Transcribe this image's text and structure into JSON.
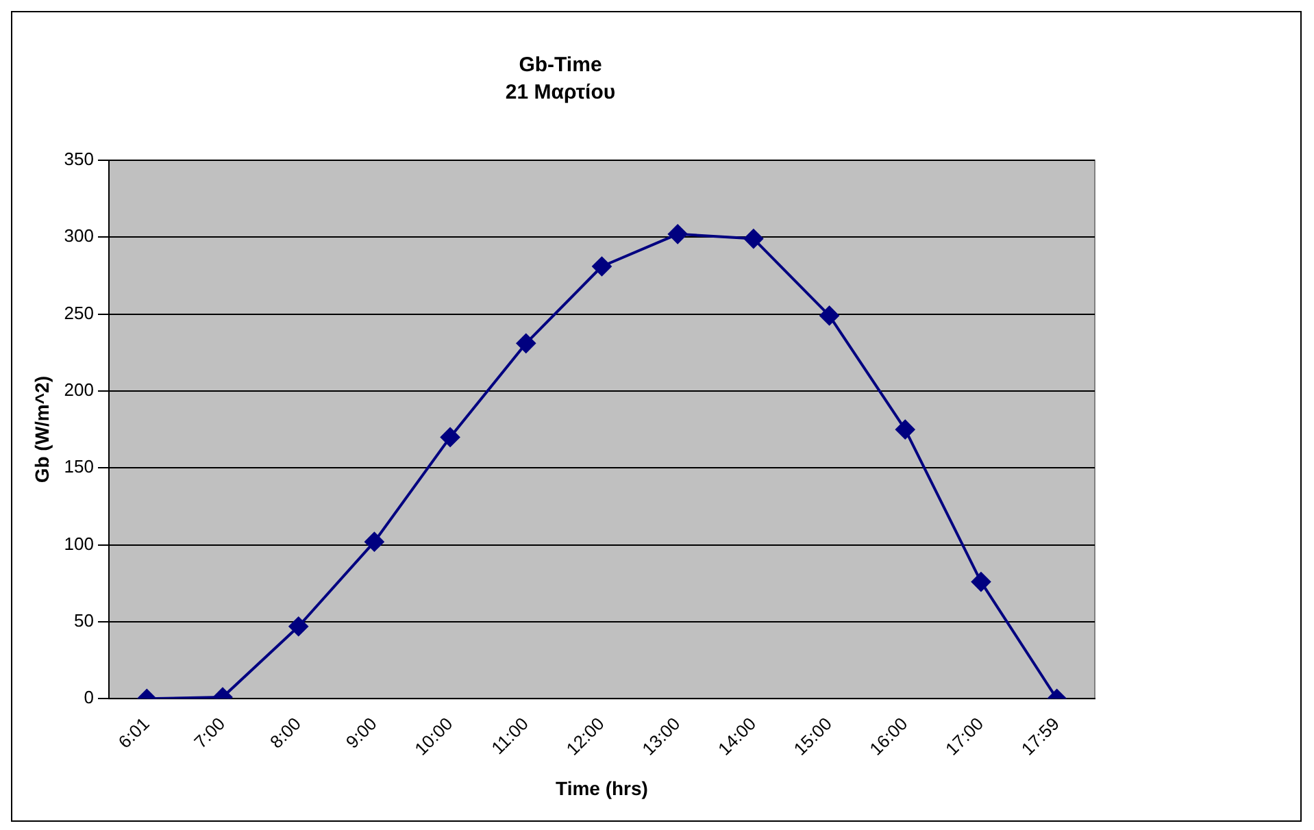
{
  "chart_data": {
    "type": "line",
    "title": "Gb-Time",
    "subtitle": "21 Μαρτίου",
    "xlabel": "Time (hrs)",
    "ylabel": "Gb (W/m^2)",
    "categories": [
      "6:01",
      "7:00",
      "8:00",
      "9:00",
      "10:00",
      "11:00",
      "12:00",
      "13:00",
      "14:00",
      "15:00",
      "16:00",
      "17:00",
      "17:59"
    ],
    "series": [
      {
        "color": "#000080",
        "values": [
          0,
          1,
          47,
          102,
          170,
          231,
          281,
          302,
          299,
          249,
          175,
          76,
          0
        ]
      }
    ],
    "ylim": [
      0,
      350
    ],
    "yticks": [
      0,
      50,
      100,
      150,
      200,
      250,
      300,
      350
    ],
    "grid": "y",
    "legend": false,
    "marker": "diamond",
    "line_style": "solid"
  }
}
